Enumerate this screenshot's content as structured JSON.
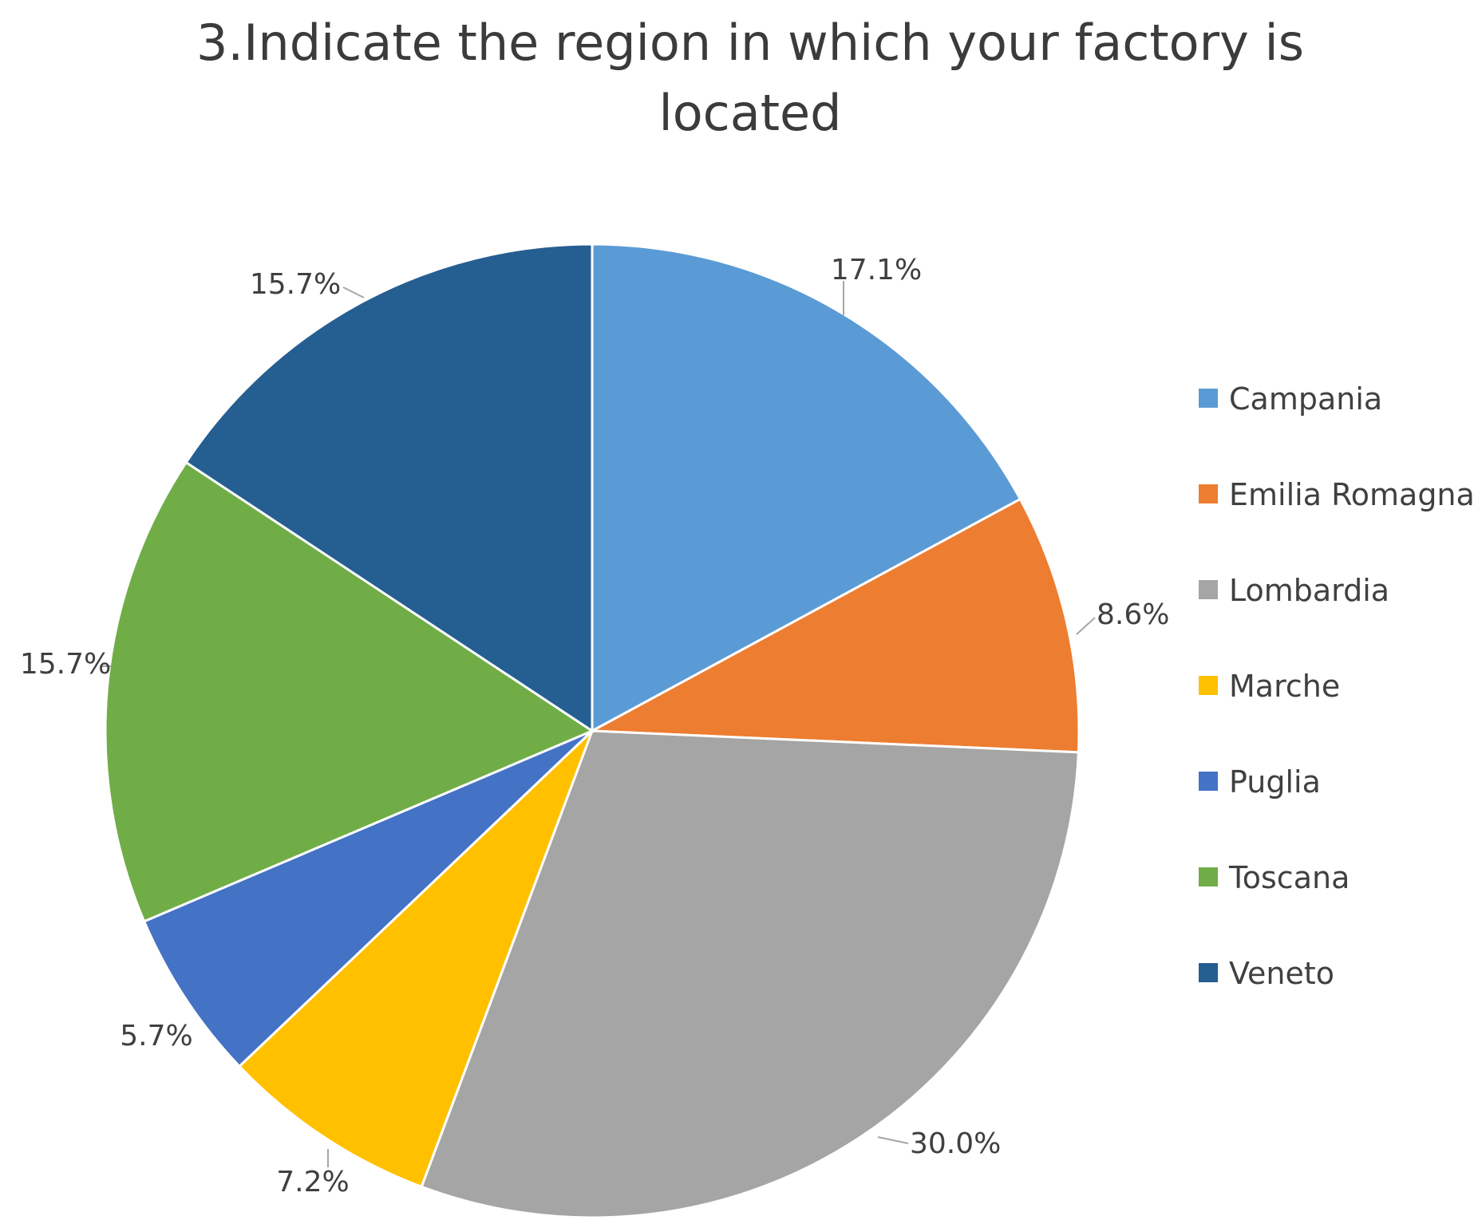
{
  "chart_data": {
    "type": "pie",
    "title": "3.Indicate the region in which your factory is located",
    "title_lines": [
      "3.Indicate the region in which your factory is",
      "located"
    ],
    "legend_position": "right",
    "slices": [
      {
        "name": "Campania",
        "value": 17.1,
        "label": "17.1%",
        "color": "#5B9BD5"
      },
      {
        "name": "Emilia Romagna",
        "value": 8.6,
        "label": "8.6%",
        "color": "#ED7D31"
      },
      {
        "name": "Lombardia",
        "value": 30.0,
        "label": "30.0%",
        "color": "#A5A5A5"
      },
      {
        "name": "Marche",
        "value": 7.2,
        "label": "7.2%",
        "color": "#FFC000"
      },
      {
        "name": "Puglia",
        "value": 5.7,
        "label": "5.7%",
        "color": "#4472C4"
      },
      {
        "name": "Toscana",
        "value": 15.7,
        "label": "15.7%",
        "color": "#70AD47"
      },
      {
        "name": "Veneto",
        "value": 15.7,
        "label": "15.7%",
        "color": "#255E91"
      }
    ]
  }
}
